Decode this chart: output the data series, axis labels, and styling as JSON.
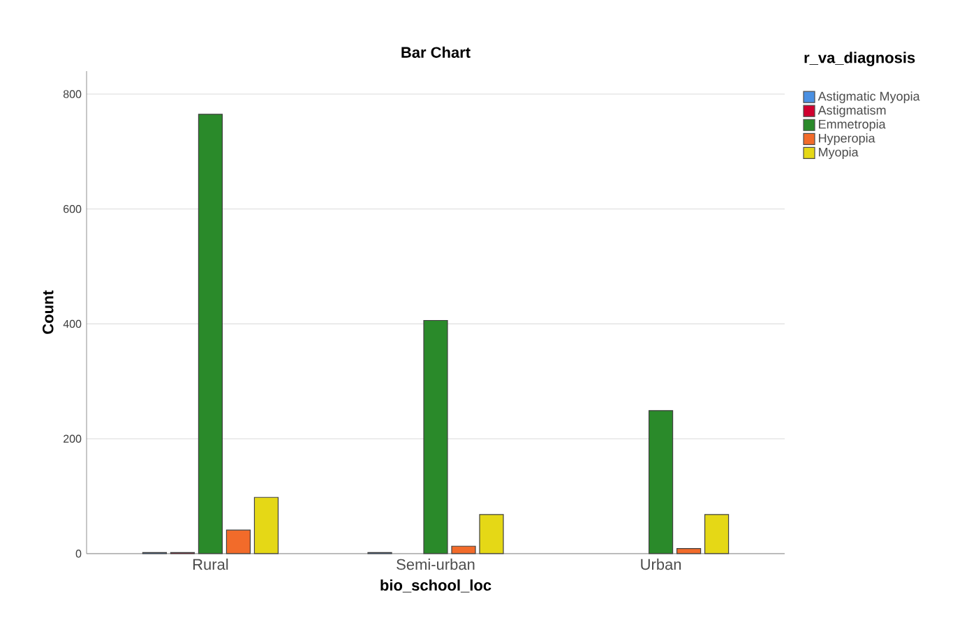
{
  "chart_data": {
    "type": "bar",
    "title": "Bar Chart",
    "xlabel": "bio_school_loc",
    "ylabel": "Count",
    "legend_title": "r_va_diagnosis",
    "categories": [
      "Rural",
      "Semi-urban",
      "Urban"
    ],
    "series": [
      {
        "name": "Astigmatic Myopia",
        "color": "#4a90e2",
        "values": [
          2,
          2,
          null
        ]
      },
      {
        "name": "Astigmatism",
        "color": "#d0002f",
        "values": [
          2,
          null,
          null
        ]
      },
      {
        "name": "Emmetropia",
        "color": "#2a8a2a",
        "values": [
          765,
          406,
          249
        ]
      },
      {
        "name": "Hyperopia",
        "color": "#f26b2a",
        "values": [
          41,
          13,
          9
        ]
      },
      {
        "name": "Myopia",
        "color": "#e5d816",
        "values": [
          98,
          68,
          68
        ]
      }
    ],
    "ylim": [
      0,
      840
    ],
    "yticks": [
      0,
      200,
      400,
      600,
      800
    ],
    "grid": "y",
    "legend": "top right"
  }
}
